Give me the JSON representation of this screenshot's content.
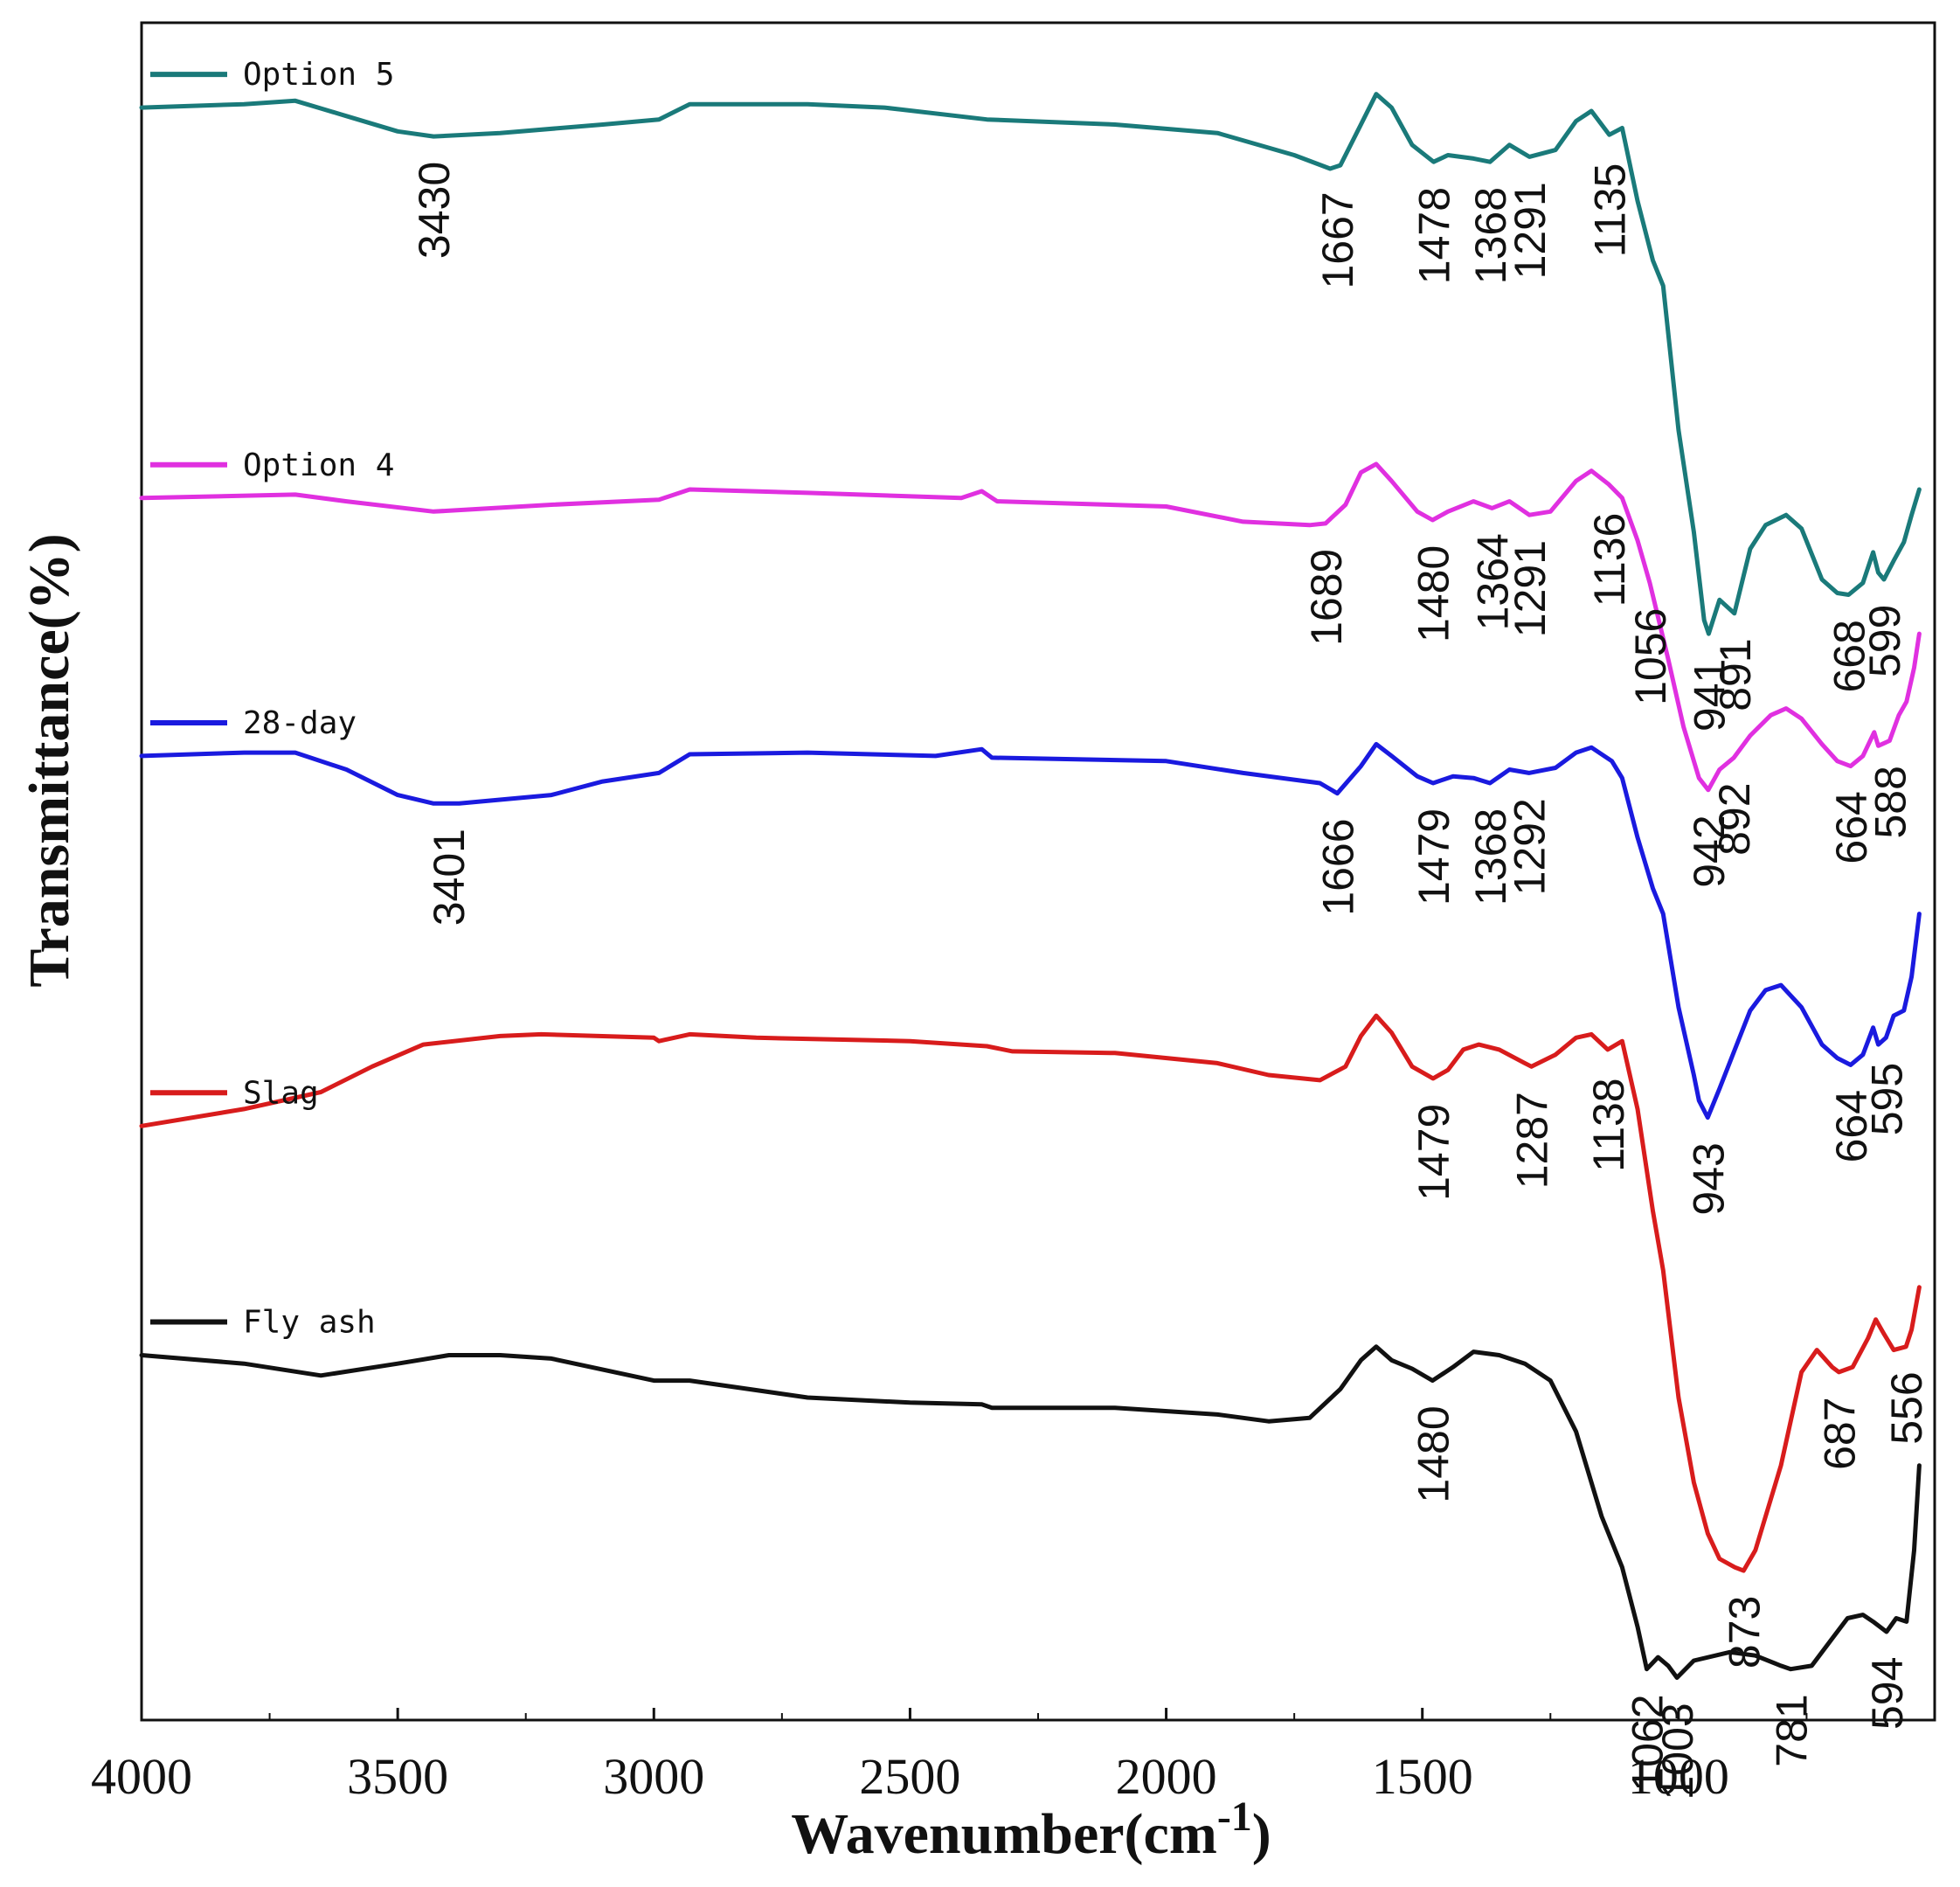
{
  "chart_data": {
    "type": "line",
    "title": "",
    "xlabel": "Wavenumber(cm",
    "xlabel_superscript": "-1",
    "xlabel_suffix": ")",
    "ylabel": "Transmittance(%)",
    "xlim": [
      4000,
      500
    ],
    "x_ticks": [
      4000,
      3500,
      3000,
      2500,
      2000,
      1500,
      1000
    ],
    "x_tick_labels": [
      "4000",
      "3500",
      "3000",
      "2500",
      "2000",
      "1500",
      "1000"
    ],
    "y_ticks_shown": false,
    "legend_entries": [
      {
        "name": "Option 5",
        "color": "#1a7a7a"
      },
      {
        "name": "Option 4",
        "color": "#e030e0"
      },
      {
        "name": "28-day",
        "color": "#1a1adf"
      },
      {
        "name": "Slag",
        "color": "#d81c1c"
      },
      {
        "name": "Fly ash",
        "color": "#111111"
      }
    ],
    "series": [
      {
        "name": "Option 5",
        "color": "#1a7a7a",
        "points": [
          [
            4000,
            0.95
          ],
          [
            3800,
            0.952
          ],
          [
            3700,
            0.954
          ],
          [
            3600,
            0.945
          ],
          [
            3500,
            0.936
          ],
          [
            3430,
            0.933
          ],
          [
            3300,
            0.935
          ],
          [
            3100,
            0.94
          ],
          [
            2990,
            0.943
          ],
          [
            2930,
            0.952
          ],
          [
            2700,
            0.952
          ],
          [
            2550,
            0.95
          ],
          [
            2350,
            0.943
          ],
          [
            2100,
            0.94
          ],
          [
            1900,
            0.935
          ],
          [
            1750,
            0.922
          ],
          [
            1680,
            0.914
          ],
          [
            1660,
            0.916
          ],
          [
            1620,
            0.94
          ],
          [
            1590,
            0.958
          ],
          [
            1560,
            0.95
          ],
          [
            1520,
            0.928
          ],
          [
            1478,
            0.918
          ],
          [
            1450,
            0.922
          ],
          [
            1400,
            0.92
          ],
          [
            1368,
            0.918
          ],
          [
            1330,
            0.928
          ],
          [
            1291,
            0.921
          ],
          [
            1240,
            0.925
          ],
          [
            1200,
            0.942
          ],
          [
            1170,
            0.948
          ],
          [
            1135,
            0.934
          ],
          [
            1110,
            0.938
          ],
          [
            1080,
            0.895
          ],
          [
            1050,
            0.86
          ],
          [
            1030,
            0.845
          ],
          [
            1000,
            0.76
          ],
          [
            970,
            0.7
          ],
          [
            950,
            0.648
          ],
          [
            941,
            0.64
          ],
          [
            920,
            0.66
          ],
          [
            891,
            0.652
          ],
          [
            860,
            0.69
          ],
          [
            830,
            0.704
          ],
          [
            790,
            0.71
          ],
          [
            760,
            0.702
          ],
          [
            720,
            0.672
          ],
          [
            690,
            0.664
          ],
          [
            668,
            0.663
          ],
          [
            640,
            0.67
          ],
          [
            620,
            0.688
          ],
          [
            610,
            0.676
          ],
          [
            599,
            0.672
          ],
          [
            580,
            0.683
          ],
          [
            560,
            0.694
          ],
          [
            545,
            0.71
          ],
          [
            530,
            0.725
          ]
        ]
      },
      {
        "name": "Option 4",
        "color": "#e030e0",
        "points": [
          [
            4000,
            0.72
          ],
          [
            3700,
            0.722
          ],
          [
            3600,
            0.718
          ],
          [
            3430,
            0.712
          ],
          [
            3200,
            0.716
          ],
          [
            2990,
            0.719
          ],
          [
            2930,
            0.725
          ],
          [
            2700,
            0.723
          ],
          [
            2400,
            0.72
          ],
          [
            2360,
            0.724
          ],
          [
            2330,
            0.718
          ],
          [
            2000,
            0.715
          ],
          [
            1850,
            0.706
          ],
          [
            1720,
            0.704
          ],
          [
            1689,
            0.705
          ],
          [
            1650,
            0.716
          ],
          [
            1620,
            0.735
          ],
          [
            1590,
            0.74
          ],
          [
            1560,
            0.73
          ],
          [
            1510,
            0.712
          ],
          [
            1480,
            0.707
          ],
          [
            1450,
            0.712
          ],
          [
            1400,
            0.718
          ],
          [
            1364,
            0.714
          ],
          [
            1330,
            0.718
          ],
          [
            1291,
            0.71
          ],
          [
            1250,
            0.712
          ],
          [
            1200,
            0.73
          ],
          [
            1170,
            0.736
          ],
          [
            1136,
            0.728
          ],
          [
            1110,
            0.72
          ],
          [
            1080,
            0.695
          ],
          [
            1056,
            0.67
          ],
          [
            1020,
            0.625
          ],
          [
            990,
            0.585
          ],
          [
            960,
            0.555
          ],
          [
            942,
            0.548
          ],
          [
            920,
            0.56
          ],
          [
            892,
            0.567
          ],
          [
            860,
            0.58
          ],
          [
            820,
            0.592
          ],
          [
            790,
            0.596
          ],
          [
            760,
            0.59
          ],
          [
            720,
            0.575
          ],
          [
            690,
            0.565
          ],
          [
            664,
            0.562
          ],
          [
            640,
            0.568
          ],
          [
            618,
            0.582
          ],
          [
            610,
            0.574
          ],
          [
            588,
            0.577
          ],
          [
            570,
            0.592
          ],
          [
            555,
            0.6
          ],
          [
            540,
            0.62
          ],
          [
            530,
            0.64
          ]
        ]
      },
      {
        "name": "28-day",
        "color": "#1a1adf",
        "points": [
          [
            4000,
            0.568
          ],
          [
            3800,
            0.57
          ],
          [
            3700,
            0.57
          ],
          [
            3600,
            0.56
          ],
          [
            3500,
            0.545
          ],
          [
            3430,
            0.54
          ],
          [
            3380,
            0.54
          ],
          [
            3200,
            0.545
          ],
          [
            3100,
            0.553
          ],
          [
            2990,
            0.558
          ],
          [
            2930,
            0.569
          ],
          [
            2700,
            0.57
          ],
          [
            2450,
            0.568
          ],
          [
            2360,
            0.572
          ],
          [
            2340,
            0.567
          ],
          [
            2000,
            0.565
          ],
          [
            1850,
            0.558
          ],
          [
            1700,
            0.552
          ],
          [
            1666,
            0.546
          ],
          [
            1620,
            0.562
          ],
          [
            1590,
            0.575
          ],
          [
            1560,
            0.568
          ],
          [
            1510,
            0.556
          ],
          [
            1479,
            0.552
          ],
          [
            1440,
            0.556
          ],
          [
            1400,
            0.555
          ],
          [
            1368,
            0.552
          ],
          [
            1330,
            0.56
          ],
          [
            1292,
            0.558
          ],
          [
            1240,
            0.561
          ],
          [
            1200,
            0.57
          ],
          [
            1170,
            0.573
          ],
          [
            1130,
            0.565
          ],
          [
            1110,
            0.555
          ],
          [
            1080,
            0.52
          ],
          [
            1050,
            0.49
          ],
          [
            1030,
            0.475
          ],
          [
            1000,
            0.42
          ],
          [
            970,
            0.38
          ],
          [
            960,
            0.365
          ],
          [
            943,
            0.355
          ],
          [
            920,
            0.372
          ],
          [
            890,
            0.395
          ],
          [
            860,
            0.418
          ],
          [
            830,
            0.43
          ],
          [
            800,
            0.433
          ],
          [
            760,
            0.42
          ],
          [
            720,
            0.398
          ],
          [
            690,
            0.39
          ],
          [
            664,
            0.386
          ],
          [
            640,
            0.392
          ],
          [
            620,
            0.408
          ],
          [
            610,
            0.398
          ],
          [
            595,
            0.402
          ],
          [
            580,
            0.415
          ],
          [
            560,
            0.418
          ],
          [
            545,
            0.438
          ],
          [
            530,
            0.475
          ]
        ]
      },
      {
        "name": "Slag",
        "color": "#d81c1c",
        "points": [
          [
            4000,
            0.35
          ],
          [
            3800,
            0.36
          ],
          [
            3650,
            0.37
          ],
          [
            3550,
            0.385
          ],
          [
            3450,
            0.398
          ],
          [
            3300,
            0.403
          ],
          [
            3220,
            0.404
          ],
          [
            3000,
            0.402
          ],
          [
            2990,
            0.4
          ],
          [
            2930,
            0.404
          ],
          [
            2800,
            0.402
          ],
          [
            2500,
            0.4
          ],
          [
            2350,
            0.397
          ],
          [
            2300,
            0.394
          ],
          [
            2100,
            0.393
          ],
          [
            1900,
            0.387
          ],
          [
            1800,
            0.38
          ],
          [
            1700,
            0.377
          ],
          [
            1650,
            0.385
          ],
          [
            1620,
            0.403
          ],
          [
            1590,
            0.415
          ],
          [
            1560,
            0.405
          ],
          [
            1520,
            0.385
          ],
          [
            1479,
            0.378
          ],
          [
            1450,
            0.383
          ],
          [
            1420,
            0.395
          ],
          [
            1390,
            0.398
          ],
          [
            1350,
            0.395
          ],
          [
            1300,
            0.387
          ],
          [
            1287,
            0.385
          ],
          [
            1240,
            0.392
          ],
          [
            1200,
            0.402
          ],
          [
            1170,
            0.404
          ],
          [
            1138,
            0.395
          ],
          [
            1110,
            0.4
          ],
          [
            1080,
            0.36
          ],
          [
            1050,
            0.3
          ],
          [
            1030,
            0.265
          ],
          [
            1000,
            0.19
          ],
          [
            970,
            0.14
          ],
          [
            943,
            0.11
          ],
          [
            920,
            0.095
          ],
          [
            890,
            0.09
          ],
          [
            873,
            0.088
          ],
          [
            850,
            0.1
          ],
          [
            800,
            0.15
          ],
          [
            760,
            0.205
          ],
          [
            730,
            0.218
          ],
          [
            700,
            0.208
          ],
          [
            687,
            0.205
          ],
          [
            660,
            0.208
          ],
          [
            630,
            0.225
          ],
          [
            615,
            0.236
          ],
          [
            600,
            0.228
          ],
          [
            580,
            0.218
          ],
          [
            556,
            0.22
          ],
          [
            545,
            0.23
          ],
          [
            530,
            0.255
          ]
        ]
      },
      {
        "name": "Fly ash",
        "color": "#111111",
        "points": [
          [
            4000,
            0.215
          ],
          [
            3800,
            0.21
          ],
          [
            3650,
            0.203
          ],
          [
            3500,
            0.21
          ],
          [
            3400,
            0.215
          ],
          [
            3300,
            0.215
          ],
          [
            3200,
            0.213
          ],
          [
            3000,
            0.2
          ],
          [
            2930,
            0.2
          ],
          [
            2700,
            0.19
          ],
          [
            2500,
            0.187
          ],
          [
            2360,
            0.186
          ],
          [
            2340,
            0.184
          ],
          [
            2100,
            0.184
          ],
          [
            1900,
            0.18
          ],
          [
            1800,
            0.176
          ],
          [
            1720,
            0.178
          ],
          [
            1660,
            0.195
          ],
          [
            1620,
            0.212
          ],
          [
            1590,
            0.22
          ],
          [
            1560,
            0.212
          ],
          [
            1520,
            0.207
          ],
          [
            1480,
            0.2
          ],
          [
            1440,
            0.208
          ],
          [
            1400,
            0.217
          ],
          [
            1350,
            0.215
          ],
          [
            1300,
            0.21
          ],
          [
            1250,
            0.2
          ],
          [
            1200,
            0.17
          ],
          [
            1150,
            0.12
          ],
          [
            1110,
            0.09
          ],
          [
            1080,
            0.055
          ],
          [
            1062,
            0.03
          ],
          [
            1040,
            0.037
          ],
          [
            1020,
            0.032
          ],
          [
            1003,
            0.025
          ],
          [
            970,
            0.035
          ],
          [
            900,
            0.04
          ],
          [
            850,
            0.038
          ],
          [
            800,
            0.032
          ],
          [
            781,
            0.03
          ],
          [
            740,
            0.032
          ],
          [
            700,
            0.048
          ],
          [
            670,
            0.06
          ],
          [
            640,
            0.062
          ],
          [
            620,
            0.058
          ],
          [
            594,
            0.052
          ],
          [
            575,
            0.06
          ],
          [
            555,
            0.058
          ],
          [
            540,
            0.1
          ],
          [
            530,
            0.15
          ]
        ]
      }
    ],
    "annotations": [
      {
        "series": "Option 5",
        "labels": [
          "3430",
          "1667",
          "1478",
          "1368",
          "1291",
          "1135",
          "941",
          "891",
          "668",
          "599"
        ]
      },
      {
        "series": "Option 4",
        "labels": [
          "1689",
          "1480",
          "1364",
          "1291",
          "1136",
          "1056",
          "942",
          "892",
          "664",
          "588"
        ]
      },
      {
        "series": "28-day",
        "labels": [
          "3401",
          "1666",
          "1479",
          "1368",
          "1292",
          "943",
          "664",
          "595"
        ]
      },
      {
        "series": "Slag",
        "labels": [
          "1479",
          "1287",
          "1138",
          "873",
          "687",
          "556"
        ]
      },
      {
        "series": "Fly ash",
        "labels": [
          "1480",
          "1062",
          "1003",
          "781",
          "594"
        ]
      }
    ]
  }
}
